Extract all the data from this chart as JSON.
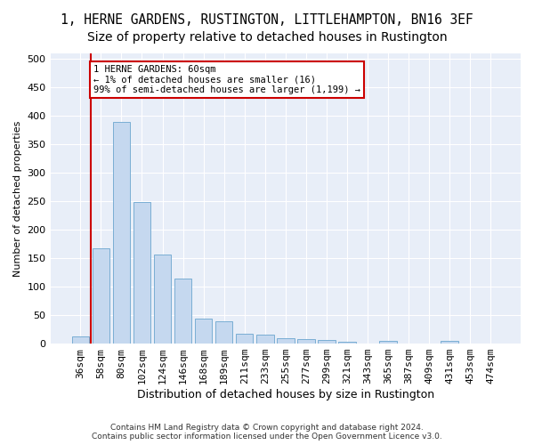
{
  "title": "1, HERNE GARDENS, RUSTINGTON, LITTLEHAMPTON, BN16 3EF",
  "subtitle": "Size of property relative to detached houses in Rustington",
  "xlabel": "Distribution of detached houses by size in Rustington",
  "ylabel": "Number of detached properties",
  "bar_labels": [
    "36sqm",
    "58sqm",
    "80sqm",
    "102sqm",
    "124sqm",
    "146sqm",
    "168sqm",
    "189sqm",
    "211sqm",
    "233sqm",
    "255sqm",
    "277sqm",
    "299sqm",
    "321sqm",
    "343sqm",
    "365sqm",
    "387sqm",
    "409sqm",
    "431sqm",
    "453sqm",
    "474sqm"
  ],
  "bar_values": [
    12,
    167,
    390,
    249,
    157,
    114,
    44,
    39,
    18,
    15,
    9,
    8,
    6,
    4,
    0,
    5,
    0,
    0,
    5,
    0,
    0
  ],
  "bar_color": "#c5d8ef",
  "bar_edge_color": "#7aaed4",
  "bg_color": "#f0f4fb",
  "plot_bg_color": "#e8eef8",
  "grid_color": "#ffffff",
  "property_line_x": 1,
  "annotation_text": "1 HERNE GARDENS: 60sqm\n← 1% of detached houses are smaller (16)\n99% of semi-detached houses are larger (1,199) →",
  "annotation_box_color": "#ffffff",
  "annotation_box_edge_color": "#cc0000",
  "property_line_color": "#cc0000",
  "footer_text": "Contains HM Land Registry data © Crown copyright and database right 2024.\nContains public sector information licensed under the Open Government Licence v3.0.",
  "ylim": [
    0,
    510
  ],
  "yticks": [
    0,
    50,
    100,
    150,
    200,
    250,
    300,
    350,
    400,
    450,
    500
  ],
  "title_fontsize": 10.5,
  "subtitle_fontsize": 10,
  "ylabel_fontsize": 8,
  "xlabel_fontsize": 9,
  "tick_fontsize": 8,
  "annotation_fontsize": 7.5,
  "footer_fontsize": 6.5
}
